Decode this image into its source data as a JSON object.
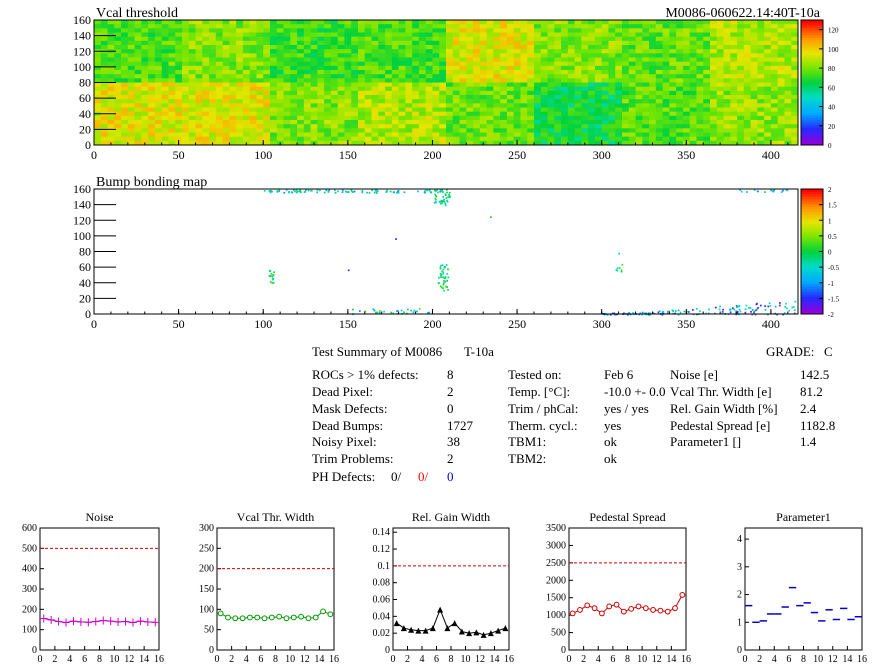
{
  "header": {
    "map1_title": "Vcal threshold",
    "module_label": "M0086-060622.14:40T-10a",
    "map2_title": "Bump bonding map"
  },
  "maps": {
    "x_ticks": [
      "0",
      "50",
      "100",
      "150",
      "200",
      "250",
      "300",
      "350",
      "400"
    ],
    "y_ticks": [
      "0",
      "20",
      "40",
      "60",
      "80",
      "100",
      "120",
      "140",
      "160"
    ],
    "x_range": [
      0,
      416
    ],
    "y_range": [
      0,
      160
    ],
    "colorbar1_ticks": [
      "0",
      "20",
      "40",
      "60",
      "80",
      "100",
      "120"
    ],
    "colorbar1_range": [
      0,
      130
    ],
    "colorbar2_ticks": [
      "-2",
      "-1.5",
      "-1",
      "-0.5",
      "0",
      "0.5",
      "1",
      "1.5",
      "2"
    ],
    "colorbar2_range": [
      -2,
      2
    ]
  },
  "summary": {
    "title": "Test Summary of M0086",
    "temp_label": "T-10a",
    "grade_label": "GRADE:",
    "grade_value": "C",
    "col1": [
      {
        "label": "ROCs > 1% defects:",
        "value": "8"
      },
      {
        "label": "Dead Pixel:",
        "value": "2"
      },
      {
        "label": "Mask Defects:",
        "value": "0"
      },
      {
        "label": "Dead Bumps:",
        "value": "1727"
      },
      {
        "label": "Noisy Pixel:",
        "value": "38"
      },
      {
        "label": "Trim Problems:",
        "value": "2"
      }
    ],
    "ph_label": "PH Defects:",
    "ph_values": [
      "0/",
      "0/",
      "0"
    ],
    "col2": [
      {
        "label": "Tested on:",
        "value": "Feb 6"
      },
      {
        "label": "Temp. [°C]:",
        "value": "-10.0 +- 0.0"
      },
      {
        "label": "Trim / phCal:",
        "value": "yes / yes"
      },
      {
        "label": "Therm. cycl.:",
        "value": "yes"
      },
      {
        "label": "TBM1:",
        "value": "ok"
      },
      {
        "label": "TBM2:",
        "value": "ok"
      }
    ],
    "col3": [
      {
        "label": "Noise [e]",
        "value": "142.5"
      },
      {
        "label": "Vcal Thr. Width [e]",
        "value": "81.2"
      },
      {
        "label": "Rel. Gain Width [%]",
        "value": "2.4"
      },
      {
        "label": "Pedestal Spread [e]",
        "value": "1182.8"
      },
      {
        "label": "Parameter1 []",
        "value": "1.4"
      }
    ],
    "colors": {
      "ph_red": "#ff0000",
      "ph_blue": "#0000cc"
    }
  },
  "chart_data": [
    {
      "type": "heatmap",
      "title": "Vcal threshold",
      "x_range": [
        0,
        416
      ],
      "y_range": [
        0,
        160
      ],
      "z_range": [
        0,
        130
      ],
      "roc_grid": {
        "columns": 8,
        "rows": 2
      },
      "roc_mean_levels": [
        [
          75,
          82,
          72,
          74,
          95,
          82,
          78,
          88
        ],
        [
          95,
          95,
          82,
          88,
          78,
          65,
          76,
          84
        ]
      ]
    },
    {
      "type": "heatmap",
      "title": "Bump bonding map",
      "x_range": [
        0,
        416
      ],
      "y_range": [
        0,
        160
      ],
      "z_range": [
        -2,
        2
      ]
    },
    {
      "type": "line",
      "title": "Noise",
      "x": [
        0,
        1,
        2,
        3,
        4,
        5,
        6,
        7,
        8,
        9,
        10,
        11,
        12,
        13,
        14,
        15
      ],
      "values": [
        155,
        148,
        140,
        135,
        142,
        138,
        136,
        140,
        145,
        142,
        138,
        140,
        135,
        142,
        138,
        136
      ],
      "threshold": 500,
      "ylim": [
        0,
        600
      ],
      "xlim": [
        0,
        16
      ],
      "yticks": [
        "0",
        "100",
        "200",
        "300",
        "400",
        "500",
        "600"
      ],
      "xticks": [
        "0",
        "2",
        "4",
        "6",
        "8",
        "10",
        "12",
        "14",
        "16"
      ],
      "color": "#cc00cc",
      "marker": "cross"
    },
    {
      "type": "line",
      "title": "Vcal Thr. Width",
      "x": [
        0,
        1,
        2,
        3,
        4,
        5,
        6,
        7,
        8,
        9,
        10,
        11,
        12,
        13,
        14,
        15
      ],
      "values": [
        90,
        80,
        78,
        78,
        80,
        80,
        78,
        80,
        82,
        78,
        80,
        82,
        78,
        80,
        95,
        88
      ],
      "threshold": 200,
      "ylim": [
        0,
        300
      ],
      "xlim": [
        0,
        16
      ],
      "yticks": [
        "0",
        "50",
        "100",
        "150",
        "200",
        "250",
        "300"
      ],
      "xticks": [
        "0",
        "2",
        "4",
        "6",
        "8",
        "10",
        "12",
        "14",
        "16"
      ],
      "color": "#009900",
      "marker": "circle"
    },
    {
      "type": "line",
      "title": "Rel. Gain Width",
      "x": [
        0,
        1,
        2,
        3,
        4,
        5,
        6,
        7,
        8,
        9,
        10,
        11,
        12,
        13,
        14,
        15
      ],
      "values": [
        0.032,
        0.026,
        0.024,
        0.023,
        0.023,
        0.026,
        0.048,
        0.026,
        0.032,
        0.022,
        0.02,
        0.021,
        0.018,
        0.02,
        0.023,
        0.026
      ],
      "threshold": 0.1,
      "ylim": [
        0,
        0.145
      ],
      "xlim": [
        0,
        16
      ],
      "yticks": [
        "0",
        "0.02",
        "0.04",
        "0.06",
        "0.08",
        "0.1",
        "0.12",
        "0.14"
      ],
      "xticks": [
        "0",
        "2",
        "4",
        "6",
        "8",
        "10",
        "12",
        "14",
        "16"
      ],
      "color": "#000000",
      "marker": "triangle"
    },
    {
      "type": "line",
      "title": "Pedestal Spread",
      "x": [
        0,
        1,
        2,
        3,
        4,
        5,
        6,
        7,
        8,
        9,
        10,
        11,
        12,
        13,
        14,
        15
      ],
      "values": [
        1050,
        1150,
        1280,
        1200,
        1050,
        1250,
        1300,
        1100,
        1180,
        1250,
        1200,
        1150,
        1130,
        1100,
        1200,
        1580
      ],
      "threshold": 2500,
      "ylim": [
        0,
        3500
      ],
      "xlim": [
        0,
        16
      ],
      "yticks": [
        "0",
        "500",
        "1000",
        "1500",
        "2000",
        "2500",
        "3000",
        "3500"
      ],
      "xticks": [
        "0",
        "2",
        "4",
        "6",
        "8",
        "10",
        "12",
        "14",
        "16"
      ],
      "color": "#cc0000",
      "marker": "circle"
    },
    {
      "type": "scatter",
      "title": "Parameter1",
      "x": [
        0,
        1,
        2,
        3,
        4,
        5,
        6,
        7,
        8,
        9,
        10,
        11,
        12,
        13,
        14,
        15
      ],
      "values": [
        1.6,
        1.0,
        1.05,
        1.3,
        1.3,
        1.55,
        2.25,
        1.6,
        1.7,
        1.35,
        1.05,
        1.45,
        1.1,
        1.5,
        1.1,
        1.2
      ],
      "ylim": [
        0,
        4.4
      ],
      "xlim": [
        0,
        16
      ],
      "yticks": [
        "0",
        "1",
        "2",
        "3",
        "4"
      ],
      "xticks": [
        "0",
        "2",
        "4",
        "6",
        "8",
        "10",
        "12",
        "14",
        "16"
      ],
      "color": "#0000cc",
      "marker": "bar"
    }
  ]
}
